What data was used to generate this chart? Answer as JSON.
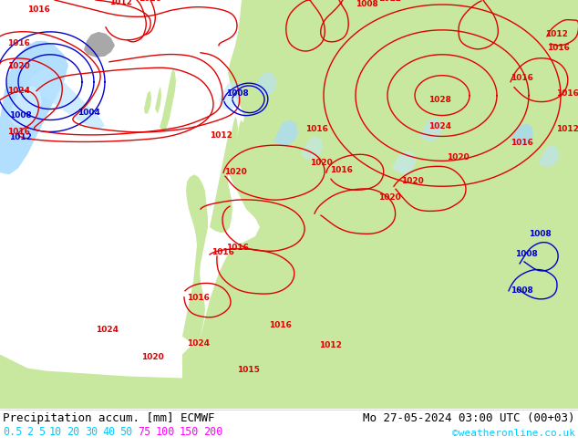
{
  "title_left": "Precipitation accum. [mm] ECMWF",
  "title_right": "Mo 27-05-2024 03:00 UTC (00+03)",
  "credit": "©weatheronline.co.uk",
  "legend_values": [
    "0.5",
    "2",
    "5",
    "10",
    "20",
    "30",
    "40",
    "50",
    "75",
    "100",
    "150",
    "200"
  ],
  "legend_colors_cyan": [
    "#00cfff",
    "#00cfff",
    "#00cfff",
    "#00cfff",
    "#00cfff",
    "#00cfff",
    "#00cfff",
    "#00cfff"
  ],
  "legend_colors_magenta": [
    "#ff00ff",
    "#ff00ff",
    "#ff00ff",
    "#ff00ff"
  ],
  "bg_color": "#ffffff",
  "ocean_color": "#d8d8d8",
  "land_color": "#c8e8a0",
  "gray_color": "#a8a8a8",
  "title_color": "#000000",
  "title_fontsize": 9,
  "legend_fontsize": 9,
  "credit_color": "#00cfff",
  "credit_fontsize": 8,
  "fig_width": 6.34,
  "fig_height": 4.9,
  "dpi": 100
}
